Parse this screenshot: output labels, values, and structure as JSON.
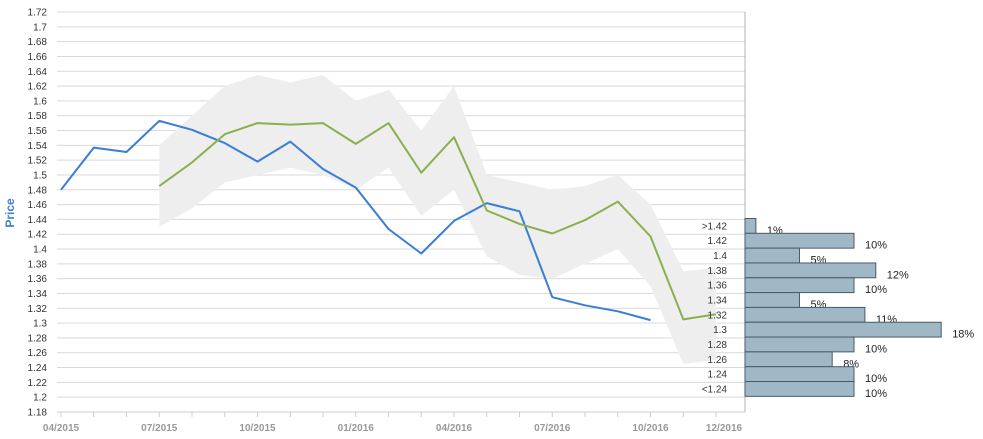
{
  "chart_data": {
    "type": "line",
    "ylabel": "Price",
    "ylim": [
      1.18,
      1.72
    ],
    "y_ticks": [
      "1.72",
      "1.7",
      "1.68",
      "1.66",
      "1.64",
      "1.62",
      "1.6",
      "1.58",
      "1.56",
      "1.54",
      "1.52",
      "1.5",
      "1.48",
      "1.46",
      "1.44",
      "1.42",
      "1.4",
      "1.38",
      "1.36",
      "1.34",
      "1.32",
      "1.3",
      "1.28",
      "1.26",
      "1.24",
      "1.22",
      "1.2",
      "1.18"
    ],
    "x_ticks": [
      "04/2015",
      "07/2015",
      "10/2015",
      "01/2016",
      "04/2016",
      "07/2016",
      "10/2016",
      "12/2016"
    ],
    "grid": true,
    "series": [
      {
        "color": "#3a7dd4",
        "x": [
          "2015-04",
          "2015-05",
          "2015-06",
          "2015-07",
          "2015-08",
          "2015-09",
          "2015-10",
          "2015-11",
          "2015-12",
          "2016-01",
          "2016-02",
          "2016-03",
          "2016-04",
          "2016-05",
          "2016-06",
          "2016-07",
          "2016-08",
          "2016-09",
          "2016-10"
        ],
        "values": [
          1.48,
          1.537,
          1.531,
          1.573,
          1.561,
          1.543,
          1.518,
          1.545,
          1.508,
          1.483,
          1.427,
          1.394,
          1.438,
          1.462,
          1.451,
          1.335,
          1.324,
          1.316,
          1.304
        ]
      },
      {
        "color": "#8ab04e",
        "x": [
          "2015-07",
          "2015-08",
          "2015-09",
          "2015-10",
          "2015-11",
          "2015-12",
          "2016-01",
          "2016-02",
          "2016-03",
          "2016-04",
          "2016-05",
          "2016-06",
          "2016-07",
          "2016-08",
          "2016-09",
          "2016-10",
          "2016-11",
          "2016-12"
        ],
        "values": [
          1.485,
          1.517,
          1.555,
          1.57,
          1.568,
          1.57,
          1.542,
          1.57,
          1.503,
          1.551,
          1.452,
          1.434,
          1.421,
          1.439,
          1.464,
          1.417,
          1.305,
          1.312
        ]
      }
    ],
    "band": {
      "color": "#eeeeee",
      "x": [
        "2015-07",
        "2015-08",
        "2015-09",
        "2015-10",
        "2015-11",
        "2015-12",
        "2016-01",
        "2016-02",
        "2016-03",
        "2016-04",
        "2016-05",
        "2016-06",
        "2016-07",
        "2016-08",
        "2016-09",
        "2016-10",
        "2016-11",
        "2016-12"
      ],
      "upper": [
        1.54,
        1.58,
        1.62,
        1.635,
        1.625,
        1.635,
        1.6,
        1.615,
        1.56,
        1.62,
        1.5,
        1.49,
        1.48,
        1.485,
        1.5,
        1.46,
        1.37,
        1.375
      ],
      "lower": [
        1.43,
        1.455,
        1.49,
        1.5,
        1.51,
        1.5,
        1.48,
        1.51,
        1.445,
        1.48,
        1.39,
        1.365,
        1.36,
        1.38,
        1.4,
        1.35,
        1.245,
        1.25
      ]
    },
    "distribution": {
      "color": "#a0b8c6",
      "bins": [
        {
          "label": ">1.42",
          "percent": 1,
          "text": "1%"
        },
        {
          "label": "1.42",
          "percent": 10,
          "text": "10%"
        },
        {
          "label": "1.4",
          "percent": 5,
          "text": "5%"
        },
        {
          "label": "1.38",
          "percent": 12,
          "text": "12%"
        },
        {
          "label": "1.36",
          "percent": 10,
          "text": "10%"
        },
        {
          "label": "1.34",
          "percent": 5,
          "text": "5%"
        },
        {
          "label": "1.32",
          "percent": 11,
          "text": "11%"
        },
        {
          "label": "1.3",
          "percent": 18,
          "text": "18%"
        },
        {
          "label": "1.28",
          "percent": 10,
          "text": "10%"
        },
        {
          "label": "1.26",
          "percent": 8,
          "text": "8%"
        },
        {
          "label": "1.24",
          "percent": 10,
          "text": "10%"
        },
        {
          "label": "<1.24",
          "percent": 10,
          "text": "10%"
        }
      ]
    }
  }
}
